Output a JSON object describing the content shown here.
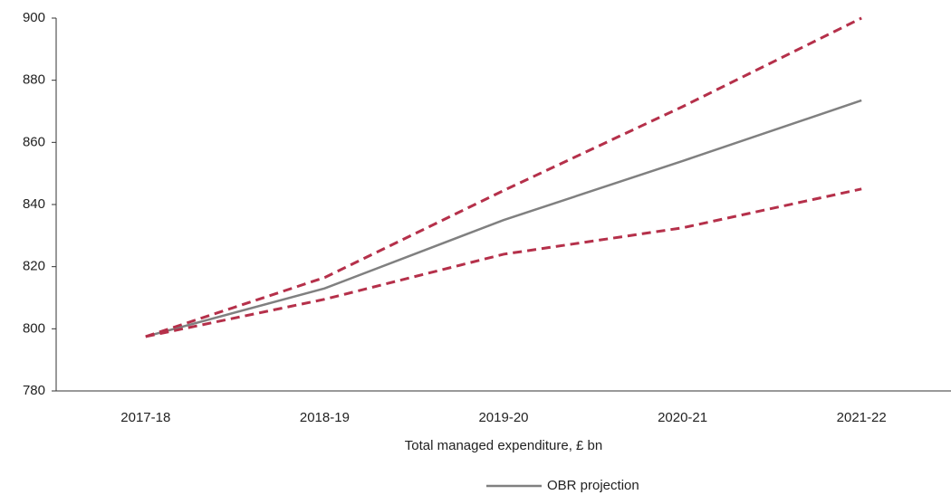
{
  "chart_data": {
    "type": "line",
    "x_label": "Total managed expenditure, £ bn",
    "categories": [
      "2017-18",
      "2018-19",
      "2019-20",
      "2020-21",
      "2021-22"
    ],
    "series": [
      {
        "name": "OBR projection",
        "color": "#808080",
        "dash": false,
        "values": [
          797.5,
          813,
          835,
          854,
          873.5
        ]
      },
      {
        "color": "#b5304a",
        "dash": true,
        "values": [
          797.5,
          816.5,
          844.5,
          871.5,
          900
        ]
      },
      {
        "color": "#b5304a",
        "dash": true,
        "values": [
          797.5,
          809.5,
          824,
          832.5,
          845
        ]
      }
    ],
    "ylim": [
      780,
      900
    ],
    "yticks": [
      780,
      800,
      820,
      840,
      860,
      880,
      900
    ],
    "legend": "bottom"
  }
}
